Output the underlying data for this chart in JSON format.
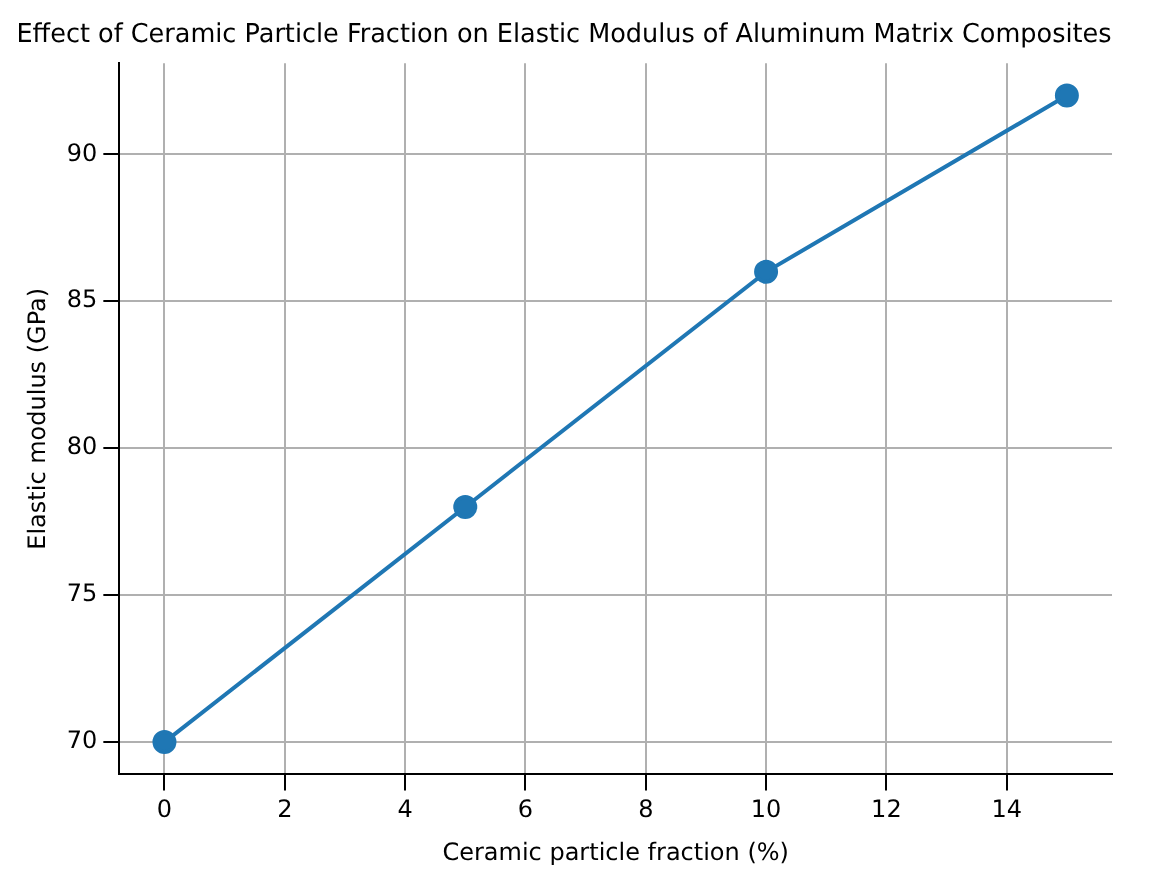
{
  "chart_data": {
    "type": "line",
    "title": "Effect of Ceramic Particle Fraction on Elastic Modulus of Aluminum Matrix Composites",
    "xlabel": "Ceramic particle fraction (%)",
    "ylabel": "Elastic modulus (GPa)",
    "x": [
      0,
      5,
      10,
      15
    ],
    "series": [
      {
        "color": "#1f77b4",
        "values": [
          70,
          78,
          86,
          92
        ]
      }
    ],
    "xlim": [
      -0.75,
      15.75
    ],
    "xticks": [
      0,
      2,
      4,
      6,
      8,
      10,
      12,
      14
    ],
    "ylim": [
      68.9,
      93.1
    ],
    "yticks": [
      70,
      75,
      80,
      85,
      90
    ],
    "grid": true,
    "legend": false,
    "marker": "circle",
    "line_style": "solid"
  }
}
